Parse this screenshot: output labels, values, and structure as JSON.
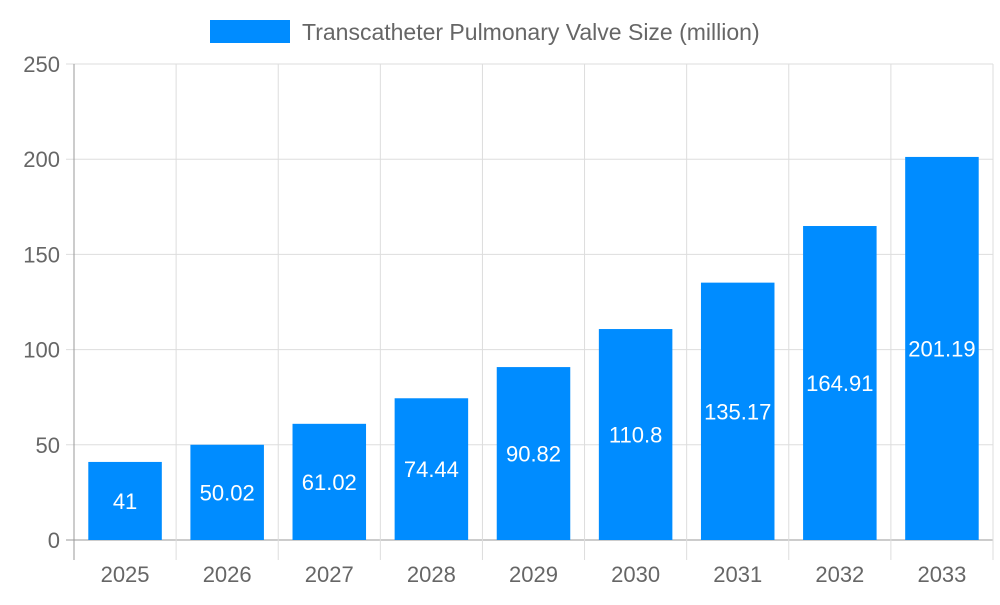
{
  "chart_data": {
    "type": "bar",
    "title": "",
    "xlabel": "",
    "ylabel": "",
    "categories": [
      "2025",
      "2026",
      "2027",
      "2028",
      "2029",
      "2030",
      "2031",
      "2032",
      "2033"
    ],
    "series": [
      {
        "name": "Transcatheter Pulmonary Valve Size (million)",
        "values": [
          41,
          50.02,
          61.02,
          74.44,
          90.82,
          110.8,
          135.17,
          164.91,
          201.19
        ]
      }
    ],
    "ylim": [
      0,
      250
    ],
    "yticks": [
      0,
      50,
      100,
      150,
      200,
      250
    ],
    "grid": true,
    "legend_position": "top",
    "data_labels": "inside-center",
    "colors": {
      "bar": "#008cff",
      "text": "#666666",
      "grid": "#dddddd",
      "label": "#ffffff"
    }
  }
}
